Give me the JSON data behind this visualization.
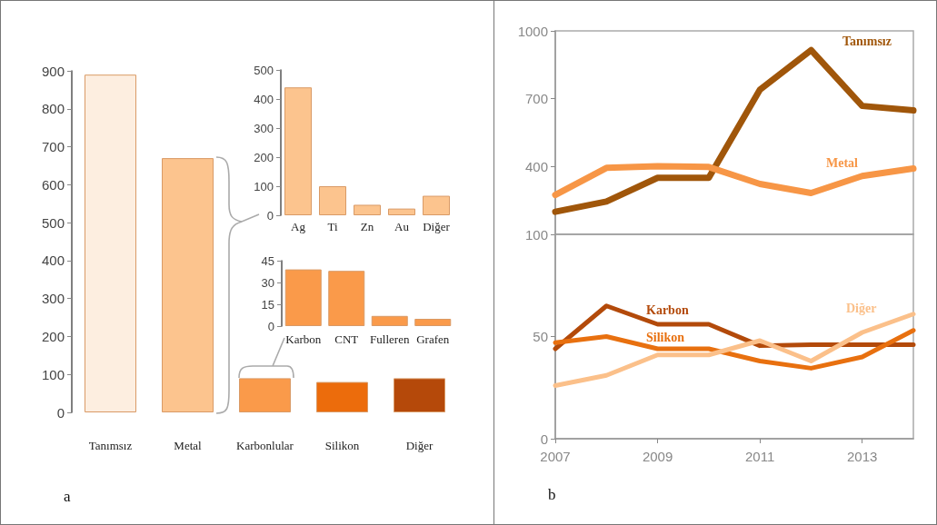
{
  "chart_data": [
    {
      "type": "bar",
      "categories": [
        "Tanımsız",
        "Metal",
        "Karbonlular",
        "Silikon",
        "Diğer"
      ],
      "values": [
        890,
        670,
        90,
        80,
        90
      ],
      "colors": [
        "#fdeee0",
        "#fcc48e",
        "#fa9a4a",
        "#ec6c0c",
        "#b5490a"
      ],
      "ylim": [
        0,
        900
      ],
      "yticks": [
        0,
        100,
        200,
        300,
        400,
        500,
        600,
        700,
        800,
        900
      ],
      "grid": false,
      "annotations": [
        "a"
      ]
    },
    {
      "type": "bar",
      "categories": [
        "Ag",
        "Ti",
        "Zn",
        "Au",
        "Diğer"
      ],
      "values": [
        440,
        100,
        36,
        23,
        67
      ],
      "color": "#fcc48e",
      "ylim": [
        0,
        500
      ],
      "yticks": [
        0,
        100,
        200,
        300,
        400,
        500
      ],
      "grid": false
    },
    {
      "type": "bar",
      "categories": [
        "Karbon",
        "CNT",
        "Fulleren",
        "Grafen"
      ],
      "values": [
        39,
        38,
        7,
        5
      ],
      "color": "#fa9a4a",
      "ylim": [
        0,
        45
      ],
      "yticks": [
        0,
        15,
        30,
        45
      ],
      "grid": false
    },
    {
      "type": "line",
      "x": [
        2007,
        2008,
        2009,
        2010,
        2011,
        2012,
        2013,
        2014
      ],
      "xlim": [
        2007,
        2014
      ],
      "xticks": [
        2007,
        2009,
        2011,
        2013
      ],
      "ylim": [
        100,
        1000
      ],
      "yticks": [
        100,
        400,
        700,
        1000
      ],
      "tick_labels": "y",
      "grid": false,
      "series": [
        {
          "name": "Tanımsız",
          "color": "#a0560a",
          "values": [
            200,
            245,
            350,
            350,
            740,
            915,
            668,
            648
          ]
        },
        {
          "name": "Metal",
          "color": "#f79646",
          "values": [
            274,
            394,
            401,
            398,
            323,
            283,
            358,
            391
          ]
        }
      ]
    },
    {
      "type": "line",
      "x": [
        2007,
        2008,
        2009,
        2010,
        2011,
        2012,
        2013,
        2014
      ],
      "xlim": [
        2007,
        2014
      ],
      "xticks": [
        2007,
        2009,
        2011,
        2013
      ],
      "ylim": [
        0,
        100
      ],
      "yticks": [
        0,
        50
      ],
      "grid": false,
      "annotations": [
        "b"
      ],
      "series": [
        {
          "name": "Karbon",
          "color": "#b34a0a",
          "values": [
            44,
            65,
            56,
            56,
            45.5,
            46,
            46,
            46
          ]
        },
        {
          "name": "Silikon",
          "color": "#e8700f",
          "values": [
            47,
            50,
            44,
            44,
            38,
            34.5,
            40,
            53
          ]
        },
        {
          "name": "Diğer",
          "color": "#fbc08a",
          "values": [
            26,
            31,
            41,
            41,
            48,
            38,
            52,
            61
          ]
        }
      ]
    }
  ]
}
